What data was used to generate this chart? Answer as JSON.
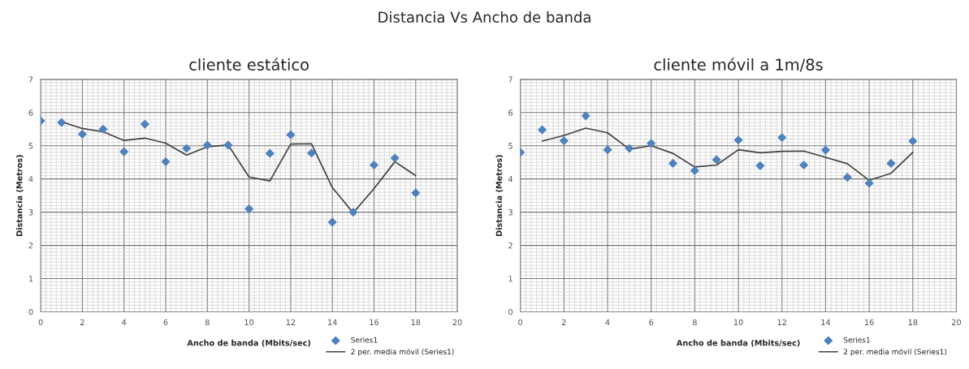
{
  "chart_data": [
    {
      "type": "scatter",
      "title": "cliente estático",
      "annotations": [
        "Distancia Vs Ancho de banda"
      ],
      "xlabel": "Ancho de banda (Mbits/sec)",
      "ylabel": "Distancia (Metros)",
      "xlim": [
        0,
        20
      ],
      "ylim": [
        0,
        7
      ],
      "xticks": [
        0,
        2,
        4,
        6,
        8,
        10,
        12,
        14,
        16,
        18,
        20
      ],
      "yticks": [
        0,
        1,
        2,
        3,
        4,
        5,
        6,
        7
      ],
      "grid": true,
      "legend": "bottom right",
      "series": [
        {
          "name": "Series1",
          "marker": "diamond",
          "color": "#4f81bd",
          "x": [
            0,
            1,
            2,
            3,
            4,
            5,
            6,
            7,
            8,
            9,
            10,
            11,
            12,
            13,
            14,
            15,
            16,
            17,
            18
          ],
          "values": [
            5.75,
            5.7,
            5.35,
            5.5,
            4.82,
            5.65,
            4.52,
            4.92,
            5.02,
            5.02,
            3.1,
            4.77,
            5.33,
            4.78,
            2.7,
            3.0,
            4.42,
            4.63,
            3.58
          ]
        },
        {
          "name": "2 per. media móvil (Series1)",
          "type": "line",
          "marker": "none",
          "line_style": "solid",
          "color": "#404040",
          "x": [
            1,
            2,
            3,
            4,
            5,
            6,
            7,
            8,
            9,
            10,
            11,
            12,
            13,
            14,
            15,
            16,
            17,
            18
          ],
          "values": [
            5.72,
            5.52,
            5.42,
            5.16,
            5.23,
            5.08,
            4.72,
            4.97,
            5.02,
            4.06,
            3.94,
            5.05,
            5.06,
            3.74,
            2.98,
            3.71,
            4.52,
            4.1
          ]
        }
      ]
    },
    {
      "type": "scatter",
      "title": "cliente móvil a 1m/8s",
      "xlabel": "Ancho de banda (Mbits/sec)",
      "ylabel": "Distancia (Metros)",
      "xlim": [
        0,
        20
      ],
      "ylim": [
        0,
        7
      ],
      "xticks": [
        0,
        2,
        4,
        6,
        8,
        10,
        12,
        14,
        16,
        18,
        20
      ],
      "yticks": [
        0,
        1,
        2,
        3,
        4,
        5,
        6,
        7
      ],
      "grid": true,
      "legend": "bottom right",
      "series": [
        {
          "name": "Series1",
          "marker": "diamond",
          "color": "#4f81bd",
          "x": [
            0,
            1,
            2,
            3,
            4,
            5,
            6,
            7,
            8,
            9,
            10,
            11,
            12,
            13,
            14,
            15,
            16,
            17,
            18
          ],
          "values": [
            4.8,
            5.48,
            5.15,
            5.9,
            4.88,
            4.92,
            5.07,
            4.47,
            4.25,
            4.58,
            5.17,
            4.4,
            5.25,
            4.42,
            4.87,
            4.05,
            3.87,
            4.47,
            5.14
          ]
        },
        {
          "name": "2 per. media móvil (Series1)",
          "type": "line",
          "marker": "none",
          "line_style": "solid",
          "color": "#404040",
          "x": [
            1,
            2,
            3,
            4,
            5,
            6,
            7,
            8,
            9,
            10,
            11,
            12,
            13,
            14,
            15,
            16,
            17,
            18
          ],
          "values": [
            5.14,
            5.31,
            5.53,
            5.39,
            4.9,
            5.0,
            4.77,
            4.36,
            4.42,
            4.88,
            4.79,
            4.83,
            4.84,
            4.65,
            4.46,
            3.96,
            4.17,
            4.8
          ]
        }
      ]
    }
  ]
}
